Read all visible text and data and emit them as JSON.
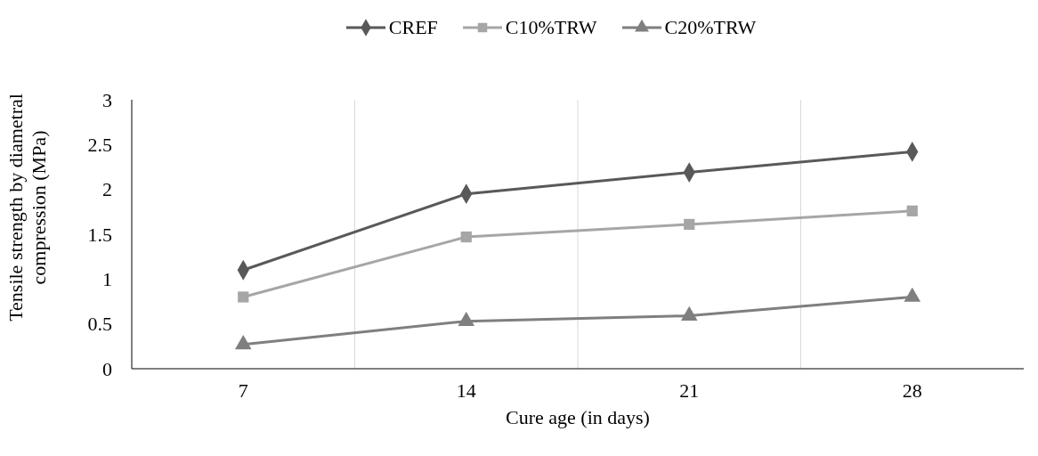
{
  "chart_data": {
    "type": "line",
    "xlabel": "Cure age (in days)",
    "ylabel": "Tensile strength by diametral compression (MPa)",
    "categories": [
      "7",
      "14",
      "21",
      "28"
    ],
    "series": [
      {
        "name": "CREF",
        "color": "#595959",
        "marker": "diamond",
        "values": [
          1.1,
          1.95,
          2.19,
          2.42
        ]
      },
      {
        "name": "C10%TRW",
        "color": "#a6a6a6",
        "marker": "square",
        "values": [
          0.8,
          1.47,
          1.61,
          1.76
        ]
      },
      {
        "name": "C20%TRW",
        "color": "#7f7f7f",
        "marker": "triangle",
        "values": [
          0.27,
          0.53,
          0.59,
          0.8
        ]
      }
    ],
    "ylim": [
      0,
      3
    ],
    "yticks": [
      0,
      0.5,
      1,
      1.5,
      2,
      2.5,
      3
    ],
    "grid": "x",
    "legend": "top",
    "line_style": "solid"
  }
}
